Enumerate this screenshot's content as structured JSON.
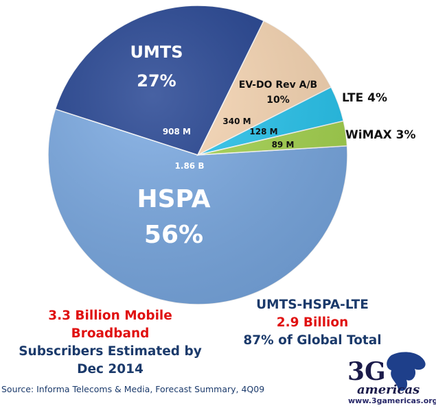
{
  "chart_data": {
    "type": "pie",
    "slices": [
      {
        "name": "HSPA",
        "percent_label": "56%",
        "value_label": "1.86 B",
        "value": 1.86,
        "color": "#79a9e3"
      },
      {
        "name": "UMTS",
        "percent_label": "27%",
        "value_label": "908 M",
        "value": 0.908,
        "color": "#1f3f8f"
      },
      {
        "name": "EV-DO Rev A/B",
        "percent_label": "10%",
        "value_label": "340 M",
        "value": 0.34,
        "color": "#fad8b4"
      },
      {
        "name": "LTE",
        "percent_label": "4%",
        "value_label": "128 M",
        "value": 0.128,
        "color": "#26c6f0"
      },
      {
        "name": "WiMAX",
        "percent_label": "3%",
        "value_label": "89 M",
        "value": 0.089,
        "color": "#a6d64e"
      }
    ]
  },
  "notes": {
    "left_line1": "3.3 Billion Mobile Broadband",
    "left_line2": "Subscribers Estimated by",
    "left_line3": "Dec 2014",
    "right_line1": "UMTS-HSPA-LTE",
    "right_line2": "2.9 Billion",
    "right_line3": "87% of Global Total"
  },
  "source": "Source: Informa Telecoms & Media, Forecast Summary, 4Q09",
  "logo": {
    "brand": "3G",
    "tagline": "americas",
    "url": "www.3gamericas.org"
  }
}
